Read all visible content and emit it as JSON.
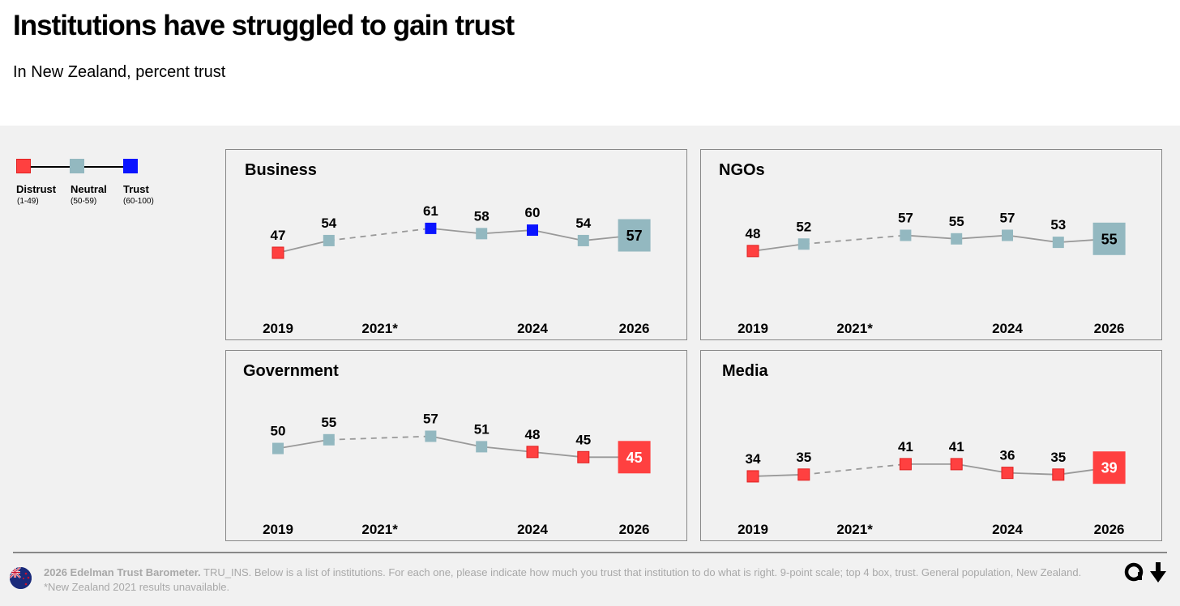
{
  "header": {
    "title": "Institutions have struggled to gain trust",
    "subtitle": "In New Zealand, percent trust"
  },
  "legend": [
    {
      "label": "Distrust",
      "range": "(1-49)",
      "color": "#ff4040"
    },
    {
      "label": "Neutral",
      "range": "(50-59)",
      "color": "#93b8c0"
    },
    {
      "label": "Trust",
      "range": "(60-100)",
      "color": "#0a14ff"
    }
  ],
  "colors": {
    "distrust": "#ff4040",
    "neutral": "#93b8c0",
    "trust": "#0a14ff",
    "line": "#999999"
  },
  "chart_data": [
    {
      "type": "line",
      "title": "Business",
      "x": [
        2019,
        2020,
        2022,
        2023,
        2024,
        2025,
        2026
      ],
      "values": [
        47,
        54,
        61,
        58,
        60,
        54,
        57
      ],
      "xtick_labels": [
        "2019",
        "2021*",
        "2024",
        "2026"
      ],
      "missing": [
        2021
      ]
    },
    {
      "type": "line",
      "title": "NGOs",
      "x": [
        2019,
        2020,
        2022,
        2023,
        2024,
        2025,
        2026
      ],
      "values": [
        48,
        52,
        57,
        55,
        57,
        53,
        55
      ],
      "xtick_labels": [
        "2019",
        "2021*",
        "2024",
        "2026"
      ],
      "missing": [
        2021
      ]
    },
    {
      "type": "line",
      "title": "Government",
      "x": [
        2019,
        2020,
        2022,
        2023,
        2024,
        2025,
        2026
      ],
      "values": [
        50,
        55,
        57,
        51,
        48,
        45,
        45
      ],
      "xtick_labels": [
        "2019",
        "2021*",
        "2024",
        "2026"
      ],
      "missing": [
        2021
      ]
    },
    {
      "type": "line",
      "title": "Media",
      "x": [
        2019,
        2020,
        2022,
        2023,
        2024,
        2025,
        2026
      ],
      "values": [
        34,
        35,
        41,
        41,
        36,
        35,
        39
      ],
      "xtick_labels": [
        "2019",
        "2021*",
        "2024",
        "2026"
      ],
      "missing": [
        2021
      ]
    }
  ],
  "footer": {
    "source_bold": "2026 Edelman Trust Barometer.",
    "source": " TRU_INS. Below is a list of institutions. For each one, please indicate how much you trust that institution to do what is right. 9-point scale; top 4 box, trust. General population, New Zealand.",
    "note": "*New Zealand 2021 results unavailable."
  }
}
